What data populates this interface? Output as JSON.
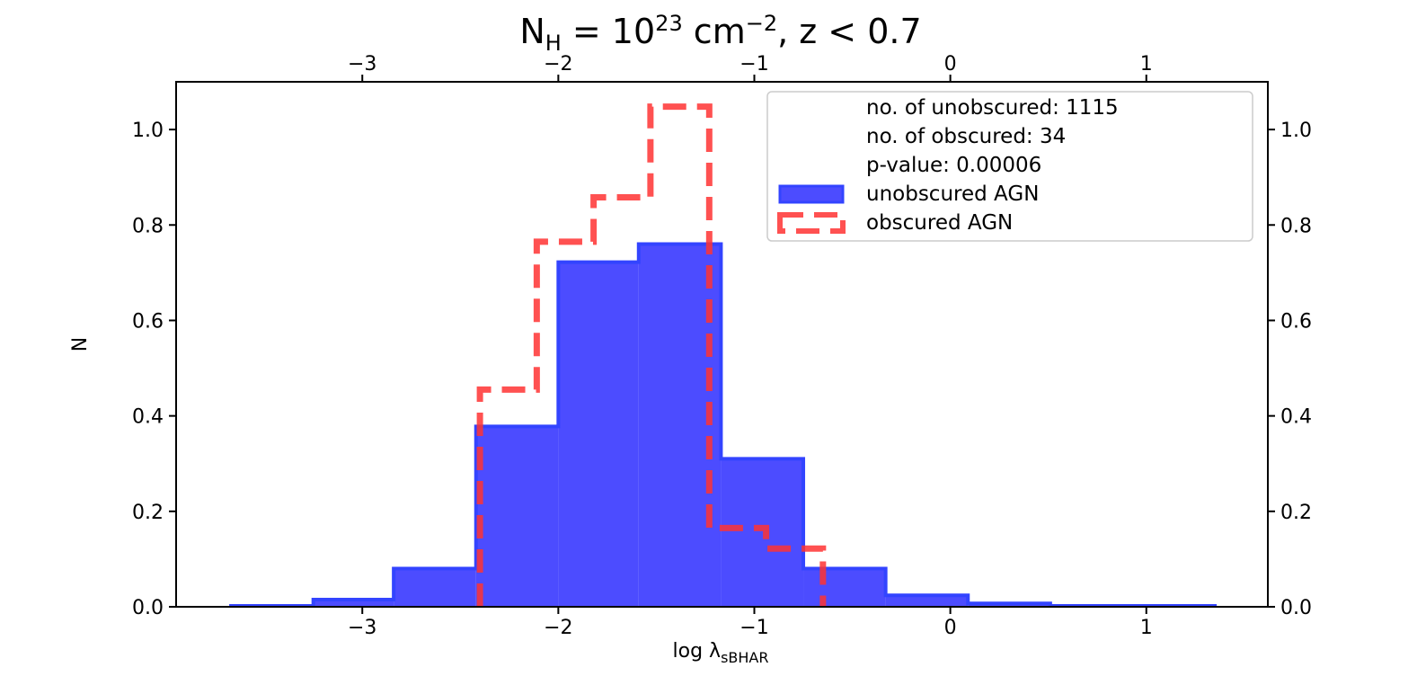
{
  "chart_data": {
    "type": "histogram",
    "title": {
      "base": "N",
      "base_sub": "H",
      "eq": " = 10",
      "exp": "23",
      "unit": " cm",
      "unit_exp": "−2",
      "tail": ", z < 0.7"
    },
    "xlabel": {
      "prefix": "log λ",
      "sub": "sBHAR"
    },
    "ylabel": "N",
    "xlim": [
      -3.95,
      1.62
    ],
    "ylim": [
      0.0,
      1.1
    ],
    "xticks": [
      -3,
      -2,
      -1,
      0,
      1
    ],
    "xtick_labels": [
      "−3",
      "−2",
      "−1",
      "0",
      "1"
    ],
    "yticks": [
      0.0,
      0.2,
      0.4,
      0.6,
      0.8,
      1.0
    ],
    "ytick_labels": [
      "0.0",
      "0.2",
      "0.4",
      "0.6",
      "0.8",
      "1.0"
    ],
    "series": [
      {
        "name": "unobscured AGN",
        "style": "filled",
        "color": "#3333ff",
        "edges": [
          -3.67,
          -3.25,
          -2.84,
          -2.42,
          -2.0,
          -1.59,
          -1.17,
          -0.75,
          -0.33,
          0.09,
          0.51,
          0.93,
          1.35
        ],
        "values": [
          0.002,
          0.015,
          0.08,
          0.378,
          0.722,
          0.76,
          0.31,
          0.08,
          0.024,
          0.007,
          0.002,
          0.002
        ]
      },
      {
        "name": "obscured AGN",
        "style": "step-dashed",
        "color": "#ff3333",
        "edges": [
          -2.4,
          -2.11,
          -1.82,
          -1.53,
          -1.23,
          -0.94,
          -0.65
        ],
        "values": [
          0.455,
          0.765,
          0.858,
          1.048,
          0.165,
          0.122
        ]
      }
    ],
    "legend": {
      "location": "upper right",
      "text_lines": [
        "no. of unobscured: 1115",
        "no. of obscured: 34",
        "p-value: 0.00006"
      ],
      "entries": [
        "unobscured AGN",
        "obscured AGN"
      ]
    }
  }
}
